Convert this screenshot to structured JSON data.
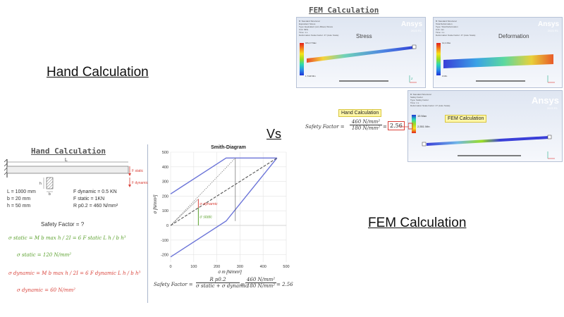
{
  "headings": {
    "hand_calculation": "Hand Calculation",
    "fem_calculation": "FEM Calculation",
    "vs": "Vs"
  },
  "fem_section": {
    "title": "FEM Calculation",
    "stress_panel": {
      "title": "Stress",
      "brand": "Ansys",
      "version": "2023 R1",
      "header_lines": [
        "B: Standard Structural",
        "Equivalent Stress",
        "Type: Equivalent (von-Mises) Stress",
        "Unit: MPa",
        "Time: 1 s",
        "Deformation Scale Factor: 47 (Auto Scale)"
      ],
      "max_label": "181,17 Max",
      "min_label": "1,7118 Min"
    },
    "deformation_panel": {
      "title": "Deformation",
      "brand": "Ansys",
      "version": "2023 R1",
      "header_lines": [
        "B: Standard Structural",
        "Total Deformation",
        "Type: Total Deformation",
        "Unit: mm",
        "Time: 1 s",
        "Deformation Scale Factor: 47 (Auto Scale)"
      ],
      "max_label": "11,1 Max",
      "min_label": "0 Min"
    },
    "safety_panel": {
      "brand": "Ansys",
      "version": "2023 R1",
      "header_lines": [
        "B: Standard Structural",
        "Safety Factor",
        "Type: Safety Factor",
        "Time: 1 s",
        "Deformation Scale Factor: 47 (Auto Scale)"
      ],
      "max_label": "15 Max",
      "min_label": "2,551 Min",
      "tag": "FEM Calculation"
    },
    "comparison": {
      "tag": "Hand Calculation",
      "label": "Safety Factor",
      "equals": "=",
      "numerator": "460 N/mm²",
      "denominator": "180 N/mm²",
      "result": "2.56"
    }
  },
  "hand_section": {
    "title": "Hand Calculation",
    "length_label": "L",
    "force_static": "F static",
    "force_dynamic": "F dynamic",
    "section_h": "h",
    "section_b": "b",
    "params_left": [
      "L = 1000 mm",
      "b = 20 mm",
      "h = 50 mm"
    ],
    "params_right": [
      "F dynamic = 0.5 KN",
      "F static = 1KN",
      "R p0.2 = 460 N/mm²"
    ],
    "safety_question": "Safety Factor = ?",
    "static_formula": "σ static = M b max h / 2I = 6 F static L h / b h³",
    "static_result": "σ static = 120 N/mm²",
    "dynamic_formula": "σ dynamic = M b max h / 2I = 6 F dynamic L h / b h³",
    "dynamic_result": "σ dynamic = 60 N/mm²"
  },
  "chart_data": {
    "type": "line",
    "title": "Smith-Diagram",
    "xlabel": "σ m [N/mm²]",
    "ylabel": "σ [N/mm²]",
    "xlim": [
      0,
      500
    ],
    "ylim": [
      -250,
      500
    ],
    "xticks": [
      0,
      100,
      200,
      300,
      400,
      500
    ],
    "yticks": [
      -200,
      -100,
      0,
      100,
      200,
      300,
      400,
      500
    ],
    "grid": true,
    "series": [
      {
        "style": "upper-limit",
        "color": "#6b74d8",
        "points": [
          [
            0,
            215
          ],
          [
            240,
            460
          ],
          [
            460,
            460
          ]
        ]
      },
      {
        "style": "lower-limit",
        "color": "#6b74d8",
        "points": [
          [
            0,
            -215
          ],
          [
            240,
            30
          ],
          [
            460,
            460
          ]
        ]
      },
      {
        "style": "mean-line",
        "color": "#555555",
        "points": [
          [
            0,
            0
          ],
          [
            460,
            460
          ]
        ]
      },
      {
        "style": "working-line",
        "color": "#555555",
        "points": [
          [
            0,
            0
          ],
          [
            280,
            460
          ]
        ]
      },
      {
        "style": "load-line",
        "color": "#555555",
        "points": [
          [
            0,
            0
          ],
          [
            120,
            180
          ]
        ]
      }
    ],
    "vertical_lines": [
      {
        "x": 280,
        "y0": 30,
        "y1": 460,
        "color": "#555555"
      }
    ],
    "annotations": [
      {
        "text": "σ dynamic",
        "color": "#d9423a",
        "from": [
          120,
          120
        ],
        "to": [
          120,
          180
        ]
      },
      {
        "text": "σ static",
        "color": "#5aa02c",
        "from": [
          120,
          0
        ],
        "to": [
          120,
          120
        ]
      }
    ],
    "formula": {
      "lhs": "Safety Factor",
      "num1": "R p0.2",
      "den1": "σ static + σ dynamic",
      "num2": "460 N/mm²",
      "den2": "180 N/mm²",
      "result": "= 2.56"
    }
  },
  "colors": {
    "red": "#d9423a",
    "green": "#5aa02c",
    "blue": "#6b74d8",
    "yellow": "#fff7a8"
  }
}
